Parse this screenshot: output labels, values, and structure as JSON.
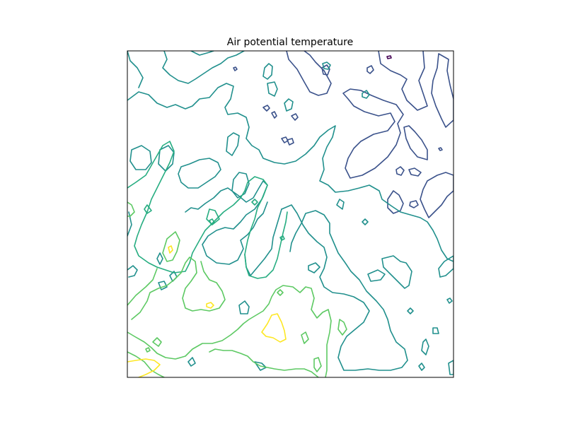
{
  "chart_data": {
    "type": "contour",
    "title": "Air potential temperature",
    "xlabel": "",
    "ylabel": "",
    "axes_visible": false,
    "frame": true,
    "colormap": "viridis",
    "grid": false,
    "legend": "none",
    "levels": [
      {
        "level": 1,
        "color": "#440154"
      },
      {
        "level": 2,
        "color": "#3b528b"
      },
      {
        "level": 3,
        "color": "#21908d"
      },
      {
        "level": 4,
        "color": "#27ad81"
      },
      {
        "level": 5,
        "color": "#5dc963"
      },
      {
        "level": 6,
        "color": "#fde725"
      }
    ]
  }
}
